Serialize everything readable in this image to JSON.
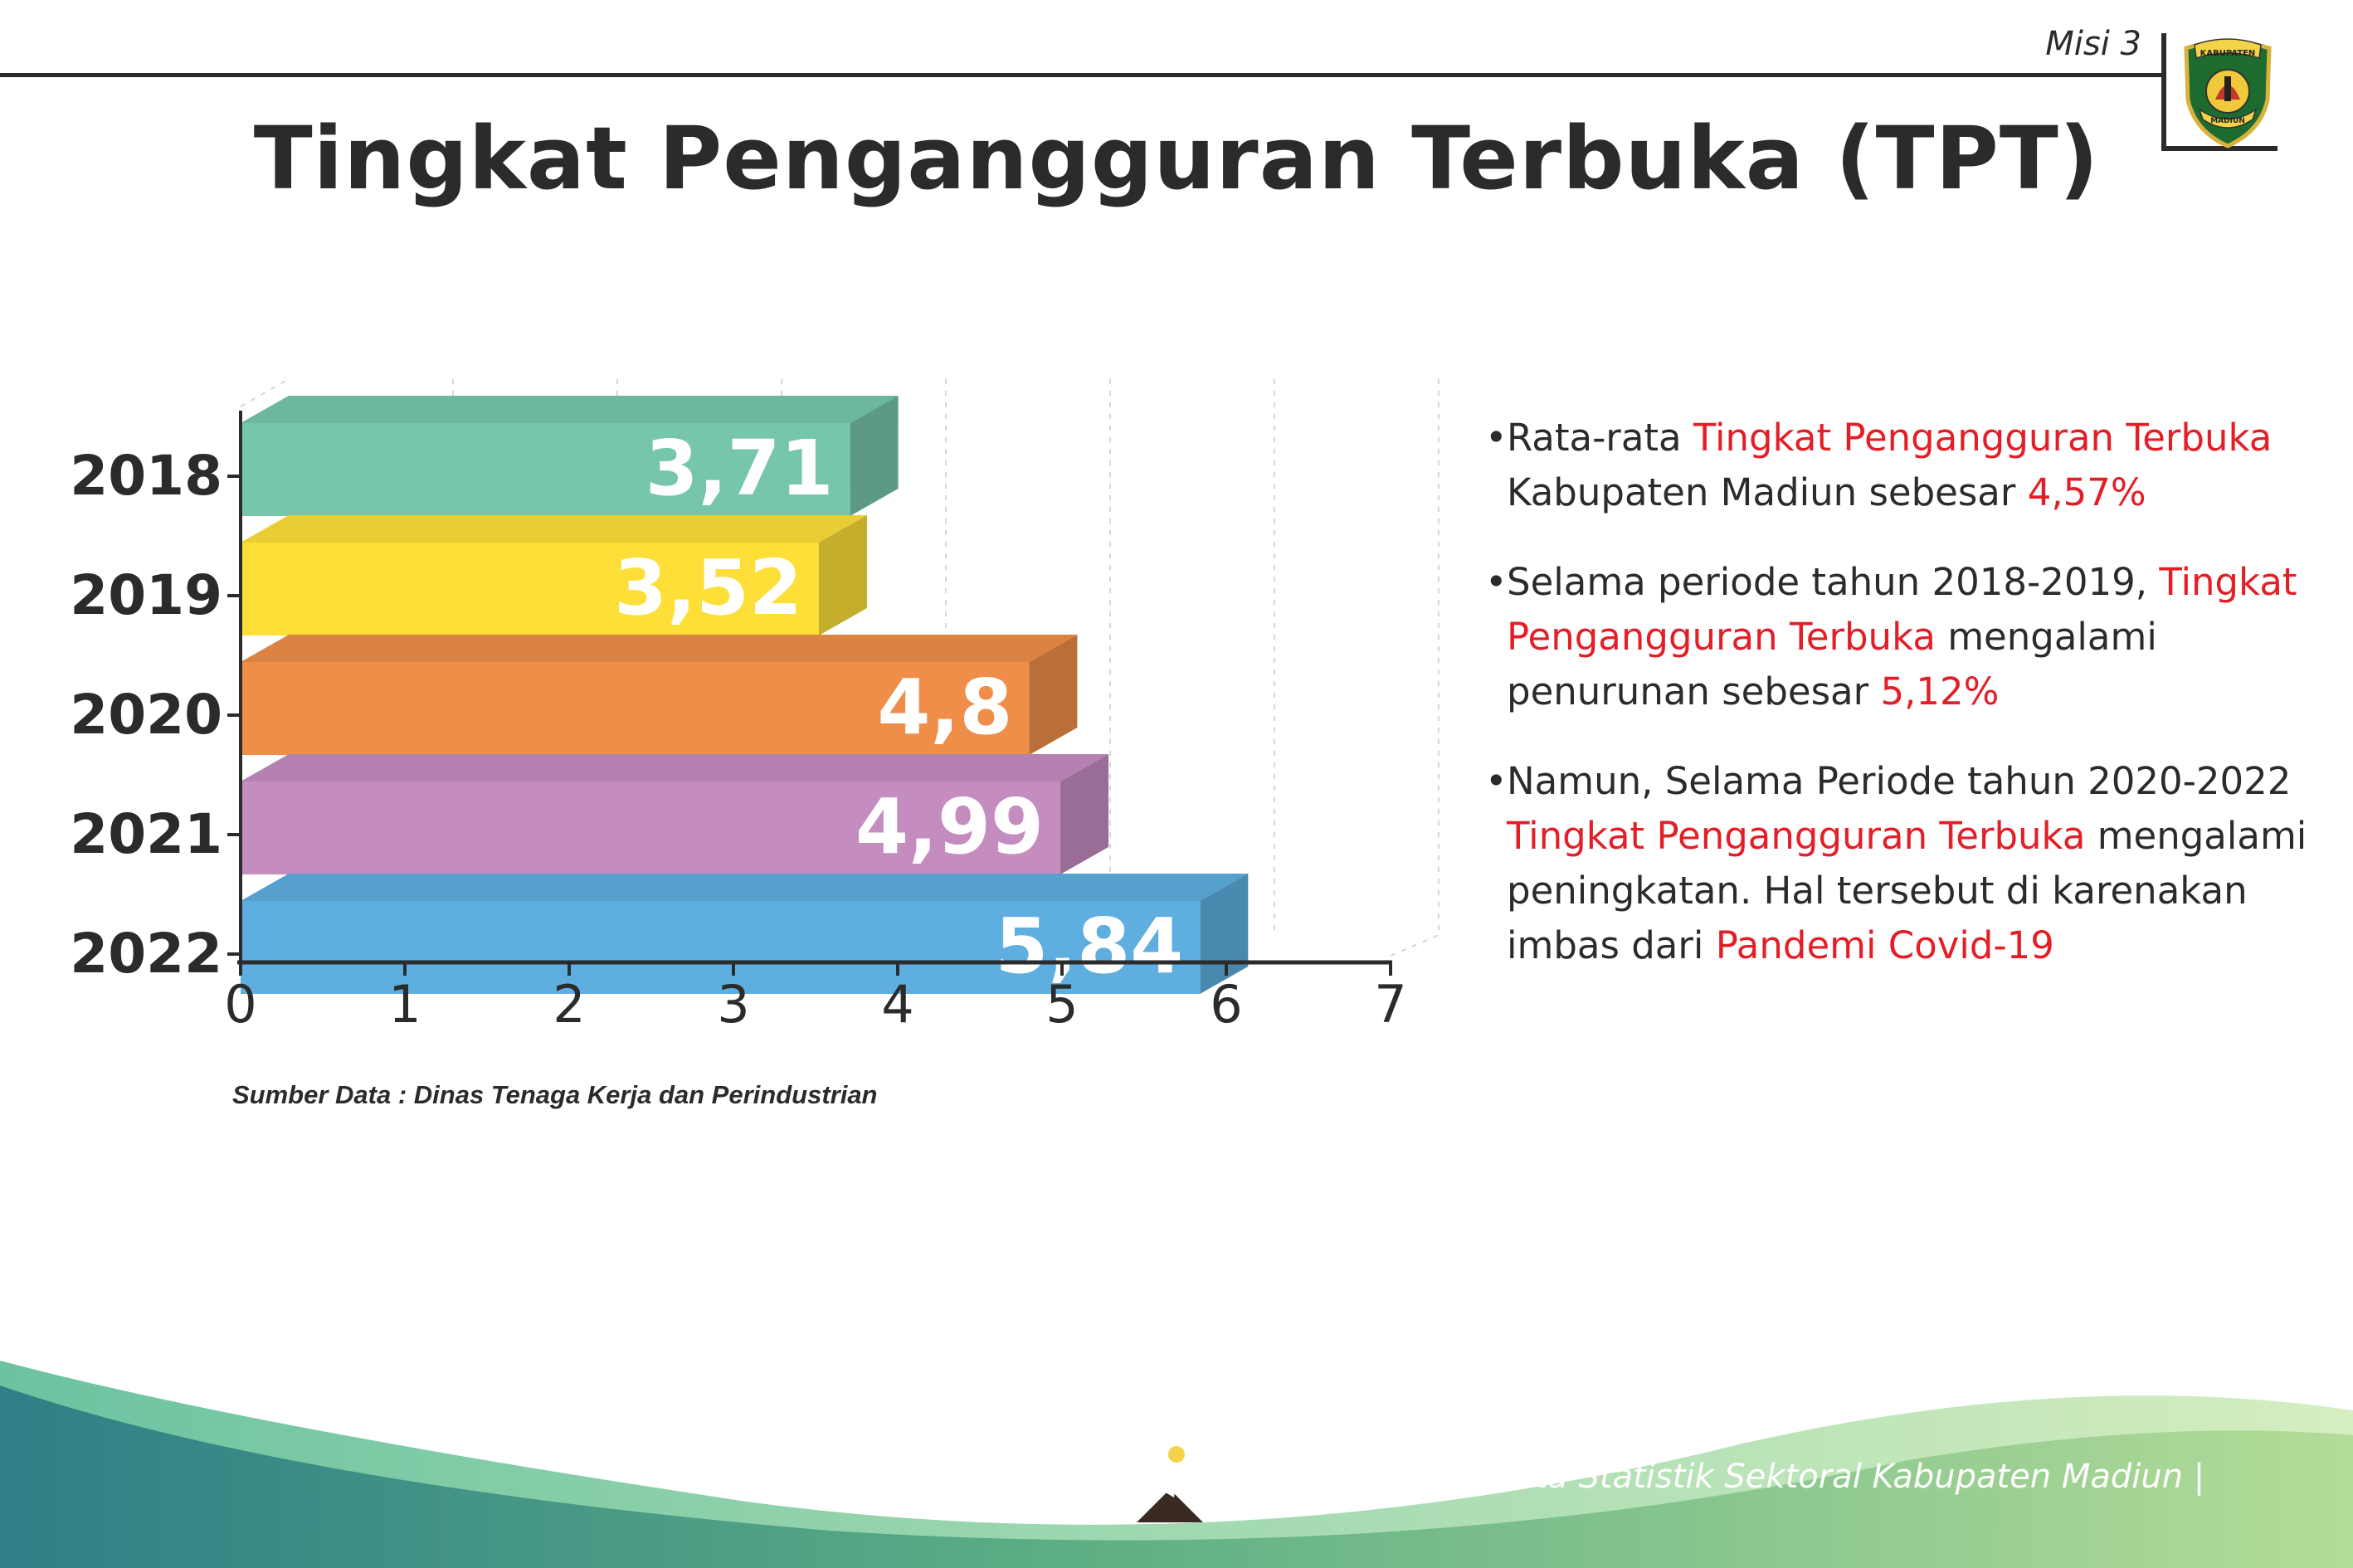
{
  "header": {
    "mission_label": "Misi 3",
    "title": "Tingkat Pengangguran Terbuka (TPT)",
    "crest": {
      "top_text": "KABUPATEN",
      "bottom_text": "MADIUN",
      "icon": "madiun-regency-crest-icon"
    }
  },
  "chart_data": {
    "type": "bar",
    "orientation": "horizontal",
    "categories": [
      "2018",
      "2019",
      "2020",
      "2021",
      "2022"
    ],
    "values": [
      3.71,
      3.52,
      4.8,
      4.99,
      5.84
    ],
    "value_labels": [
      "3,71",
      "3,52",
      "4,8",
      "4,99",
      "5,84"
    ],
    "x_ticks": [
      "0",
      "1",
      "2",
      "3",
      "4",
      "5",
      "6",
      "7"
    ],
    "xlim": [
      0,
      7
    ],
    "title": "",
    "xlabel": "",
    "ylabel": "",
    "grid": "vertical dashed",
    "colors": [
      "#76c6ad",
      "#fddf38",
      "#ee8e48",
      "#c48cbf",
      "#5eaee0"
    ]
  },
  "source_note": "Sumber Data : Dinas Tenaga Kerja dan Perindustrian",
  "bullets": [
    {
      "marker": "•",
      "parts": [
        {
          "text": "Rata-rata ",
          "highlight": false
        },
        {
          "text": "Tingkat Pengangguran Terbuka",
          "highlight": true
        },
        {
          "text": " Kabupaten Madiun sebesar ",
          "highlight": false
        },
        {
          "text": "4,57%",
          "highlight": true
        }
      ]
    },
    {
      "marker": "•",
      "parts": [
        {
          "text": "Selama periode tahun 2018-2019, ",
          "highlight": false
        },
        {
          "text": "Tingkat Pengangguran Terbuka",
          "highlight": true
        },
        {
          "text": " mengalami penurunan sebesar ",
          "highlight": false
        },
        {
          "text": "5,12%",
          "highlight": true
        }
      ]
    },
    {
      "marker": "•",
      "parts": [
        {
          "text": "Namun, Selama Periode tahun 2020-2022 ",
          "highlight": false
        },
        {
          "text": "Tingkat Pengangguran Terbuka",
          "highlight": true
        },
        {
          "text": " mengalami peningkatan. Hal tersebut di karenakan imbas dari ",
          "highlight": false
        },
        {
          "text": "Pandemi Covid-19",
          "highlight": true
        }
      ]
    }
  ],
  "footer": {
    "text": "Media Infografis Data Statistik Sektoral Kabupaten Madiun |",
    "logo_icon": "media-infografis-logo-icon"
  },
  "colors": {
    "highlight": "#e41e26",
    "text": "#2b2b2b",
    "footer_dark": "#2e8a8a",
    "footer_light": "#9fd58c"
  }
}
